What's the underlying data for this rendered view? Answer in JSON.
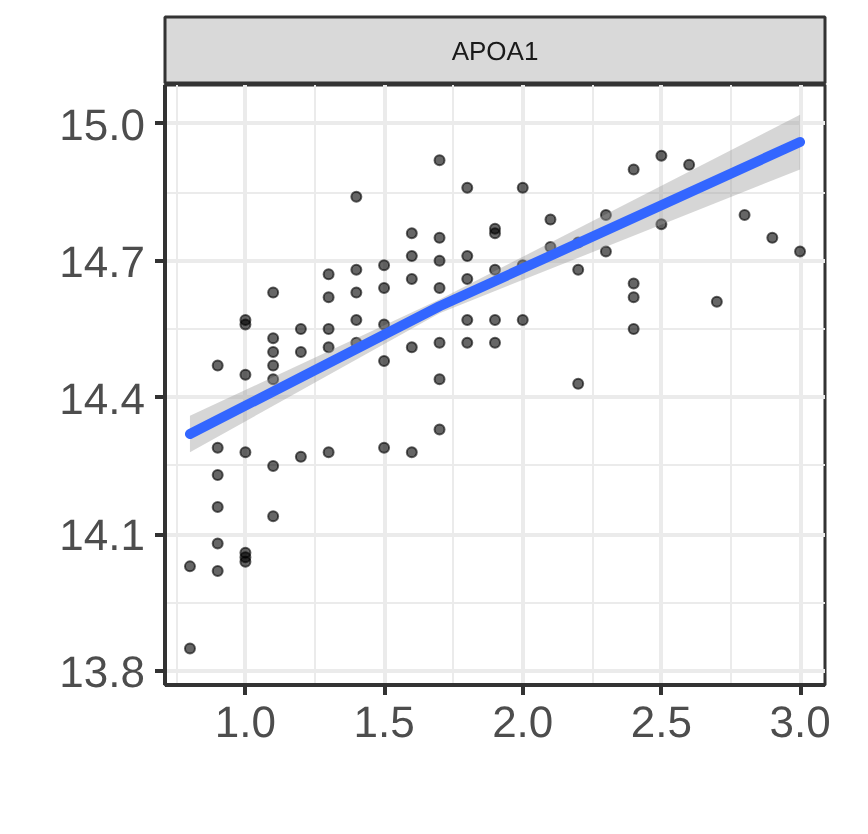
{
  "chart_data": {
    "type": "scatter",
    "title": "APOA1",
    "xlim": [
      0.71,
      3.09
    ],
    "ylim": [
      13.77,
      15.085
    ],
    "xticks": [
      {
        "value": 1.0,
        "label": "1.0"
      },
      1.5,
      {
        "value": 2.0,
        "label": "2.0"
      },
      2.5,
      {
        "value": 3.0,
        "label": "3.0"
      }
    ],
    "yticks": [
      13.8,
      14.1,
      14.4,
      14.7,
      {
        "value": 15.0,
        "label": "15.0"
      }
    ],
    "grid": true,
    "series": [
      {
        "marker": "circle",
        "color": "#000000",
        "x": [
          0.8,
          0.8,
          0.9,
          0.9,
          1.0,
          1.0,
          1.0,
          0.9,
          0.9,
          0.9,
          1.1,
          1.0,
          1.1,
          1.2,
          1.3,
          1.5,
          1.6,
          1.7,
          0.9,
          1.0,
          1.0,
          1.0,
          1.1,
          1.1,
          1.1,
          1.1,
          1.1,
          1.2,
          1.2,
          1.3,
          1.3,
          1.3,
          1.3,
          1.4,
          1.4,
          1.4,
          1.4,
          1.4,
          1.5,
          1.5,
          1.5,
          1.5,
          1.6,
          1.6,
          1.6,
          1.6,
          1.7,
          1.7,
          1.7,
          1.7,
          1.7,
          1.7,
          1.8,
          1.8,
          1.8,
          1.8,
          1.8,
          2.0,
          1.9,
          1.9,
          1.9,
          1.9,
          1.9,
          2.0,
          2.0,
          2.1,
          2.1,
          2.2,
          2.2,
          2.2,
          2.3,
          2.3,
          2.4,
          2.4,
          2.4,
          2.4,
          2.5,
          2.5,
          2.6,
          2.7,
          2.8,
          2.9,
          3.0
        ],
        "values": [
          13.85,
          14.03,
          14.02,
          14.08,
          14.06,
          14.05,
          14.04,
          14.16,
          14.23,
          14.29,
          14.14,
          14.28,
          14.25,
          14.27,
          14.28,
          14.29,
          14.28,
          14.33,
          14.47,
          14.45,
          14.57,
          14.56,
          14.63,
          14.53,
          14.5,
          14.47,
          14.44,
          14.55,
          14.5,
          14.67,
          14.62,
          14.55,
          14.51,
          14.84,
          14.68,
          14.63,
          14.57,
          14.52,
          14.69,
          14.64,
          14.56,
          14.48,
          14.76,
          14.71,
          14.66,
          14.51,
          14.92,
          14.75,
          14.7,
          14.64,
          14.52,
          14.44,
          14.86,
          14.71,
          14.66,
          14.57,
          14.52,
          14.86,
          14.77,
          14.76,
          14.68,
          14.57,
          14.52,
          14.69,
          14.57,
          14.79,
          14.73,
          14.74,
          14.68,
          14.43,
          14.8,
          14.72,
          14.9,
          14.65,
          14.62,
          14.55,
          14.93,
          14.78,
          14.91,
          14.61,
          14.8,
          14.75,
          14.72
        ]
      },
      {
        "type": "line",
        "color": "#3366ff",
        "x": [
          0.8,
          1.7,
          3.0
        ],
        "values": [
          14.32,
          14.6,
          14.96
        ],
        "lower": [
          14.28,
          14.585,
          14.9
        ],
        "upper": [
          14.36,
          14.615,
          15.02
        ]
      }
    ]
  }
}
